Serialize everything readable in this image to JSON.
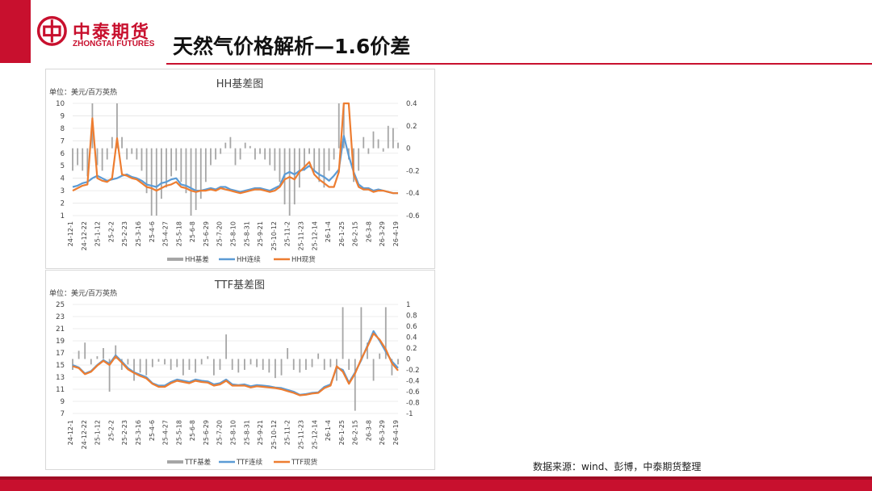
{
  "header": {
    "brand_cn": "中泰期货",
    "brand_en": "ZHONGTAI FUTURES",
    "title": "天然气价格解析—1.6价差"
  },
  "source": "数据来源：wind、彭博，中泰期货整理",
  "colors": {
    "brand": "#c8102e",
    "basis": "#a6a6a6",
    "continuous": "#5b9bd5",
    "spot": "#ed7d31"
  },
  "chart_data": [
    {
      "type": "line",
      "title": "HH基差图",
      "unit_label": "单位：美元/百万英热",
      "ylim": [
        1,
        10
      ],
      "yticks": [
        "1",
        "2",
        "3",
        "4",
        "5",
        "6",
        "7",
        "8",
        "9",
        "10"
      ],
      "y2lim": [
        -0.6,
        0.4
      ],
      "y2ticks": [
        "-0.6",
        "-0.4",
        "-0.2",
        "0",
        "0.2",
        "0.4"
      ],
      "xticks": [
        "24-12-1",
        "24-12-22",
        "25-1-12",
        "25-2-2",
        "25-2-23",
        "25-3-16",
        "25-4-6",
        "25-4-27",
        "25-5-18",
        "25-6-8",
        "25-6-29",
        "25-7-20",
        "25-8-10",
        "25-8-31",
        "25-9-21",
        "25-10-12",
        "25-11-2",
        "25-11-23",
        "25-12-14",
        "26-1-4",
        "26-1-25",
        "26-2-15",
        "26-3-8",
        "26-3-29",
        "26-4-19"
      ],
      "legend": [
        "HH基差",
        "HH连续",
        "HH现货"
      ],
      "series": [
        {
          "name": "HH连续",
          "type": "line",
          "axis": "left",
          "values": [
            3.3,
            3.4,
            3.6,
            3.7,
            4.0,
            4.2,
            4.0,
            3.8,
            3.9,
            4.0,
            4.2,
            4.3,
            4.1,
            4.0,
            3.8,
            3.5,
            3.4,
            3.3,
            3.6,
            3.7,
            3.9,
            4.0,
            3.5,
            3.4,
            3.2,
            3.0,
            3.0,
            3.1,
            3.2,
            3.1,
            3.3,
            3.3,
            3.1,
            3.0,
            2.9,
            3.0,
            3.1,
            3.2,
            3.2,
            3.1,
            3.0,
            3.2,
            3.4,
            4.3,
            4.5,
            4.3,
            4.6,
            4.7,
            5.0,
            4.6,
            4.3,
            4.1,
            3.8,
            4.2,
            4.7,
            7.4,
            5.8,
            4.5,
            3.5,
            3.2,
            3.2,
            3.0,
            3.1,
            3.0,
            2.9,
            2.8,
            2.8
          ]
        },
        {
          "name": "HH现货",
          "type": "line",
          "axis": "left",
          "values": [
            3.0,
            3.2,
            3.4,
            3.5,
            8.8,
            4.0,
            3.8,
            3.7,
            4.0,
            7.2,
            4.3,
            4.2,
            4.0,
            3.9,
            3.6,
            3.3,
            3.2,
            3.0,
            3.2,
            3.4,
            3.5,
            3.7,
            3.3,
            3.2,
            3.0,
            2.9,
            3.0,
            3.0,
            3.1,
            3.0,
            3.2,
            3.1,
            3.0,
            2.9,
            2.8,
            2.9,
            3.0,
            3.1,
            3.1,
            3.0,
            2.9,
            3.0,
            3.3,
            3.9,
            4.1,
            3.9,
            4.5,
            4.9,
            5.3,
            4.3,
            3.9,
            3.6,
            3.3,
            3.3,
            4.5,
            10.0,
            10.0,
            4.3,
            3.3,
            3.1,
            3.1,
            2.9,
            3.0,
            3.0,
            2.9,
            2.8,
            2.8
          ]
        },
        {
          "name": "HH基差",
          "type": "bar",
          "axis": "right",
          "values": [
            -0.2,
            -0.15,
            -0.2,
            -0.25,
            0.5,
            -0.15,
            -0.2,
            -0.1,
            0.1,
            0.5,
            0.1,
            -0.1,
            -0.05,
            -0.1,
            -0.2,
            -0.4,
            -0.6,
            -0.6,
            -0.45,
            -0.35,
            -0.25,
            -0.2,
            -0.3,
            -0.4,
            -0.6,
            -0.55,
            -0.45,
            -0.3,
            -0.15,
            -0.1,
            -0.05,
            0.05,
            0.1,
            -0.15,
            -0.1,
            0.05,
            0.02,
            -0.1,
            -0.05,
            -0.1,
            -0.15,
            -0.2,
            -0.3,
            -0.5,
            -0.6,
            -0.5,
            -0.35,
            -0.2,
            -0.05,
            -0.2,
            -0.3,
            -0.35,
            -0.2,
            -0.1,
            0.45,
            0.5,
            -0.1,
            -0.3,
            -0.2,
            0.1,
            -0.05,
            0.15,
            0.08,
            -0.03,
            0.2,
            0.18,
            0.05
          ]
        }
      ]
    },
    {
      "type": "line",
      "title": "TTF基差图",
      "unit_label": "单位：美元/百万英热",
      "ylim": [
        7,
        25
      ],
      "yticks": [
        "7",
        "9",
        "11",
        "13",
        "15",
        "17",
        "19",
        "21",
        "23",
        "25"
      ],
      "y2lim": [
        -1,
        1
      ],
      "y2ticks": [
        "-1",
        "-0.8",
        "-0.6",
        "-0.4",
        "-0.2",
        "0",
        "0.2",
        "0.4",
        "0.6",
        "0.8",
        "1"
      ],
      "xticks": [
        "24-12-1",
        "24-12-22",
        "25-1-12",
        "25-2-2",
        "25-2-23",
        "25-3-16",
        "25-4-6",
        "25-4-27",
        "25-5-18",
        "25-6-8",
        "25-6-29",
        "25-7-20",
        "25-8-10",
        "25-8-31",
        "25-9-21",
        "25-10-12",
        "25-11-2",
        "25-11-23",
        "25-12-14",
        "26-1-4",
        "26-1-25",
        "26-2-15",
        "26-3-8",
        "26-3-29",
        "26-4-19"
      ],
      "legend": [
        "TTF基差",
        "TTF连续",
        "TTF现货"
      ],
      "series": [
        {
          "name": "TTF连续",
          "type": "line",
          "axis": "left",
          "values": [
            15.0,
            14.6,
            13.6,
            14.0,
            15.0,
            15.8,
            15.2,
            16.6,
            15.6,
            14.5,
            13.8,
            13.4,
            13.0,
            12.0,
            11.6,
            11.6,
            12.2,
            12.6,
            12.4,
            12.2,
            12.6,
            12.4,
            12.3,
            11.8,
            12.0,
            12.6,
            11.8,
            11.7,
            11.8,
            11.5,
            11.7,
            11.6,
            11.5,
            11.3,
            11.2,
            10.9,
            10.6,
            10.1,
            10.2,
            10.4,
            10.5,
            11.4,
            11.8,
            14.6,
            14.2,
            12.1,
            13.8,
            15.8,
            18.2,
            20.6,
            19.0,
            17.2,
            15.6,
            14.5
          ]
        },
        {
          "name": "TTF现货",
          "type": "line",
          "axis": "left",
          "values": [
            14.8,
            14.5,
            13.5,
            13.9,
            14.9,
            15.7,
            15.0,
            16.4,
            15.4,
            14.3,
            13.7,
            13.2,
            12.8,
            11.9,
            11.4,
            11.4,
            12.0,
            12.4,
            12.2,
            12.0,
            12.4,
            12.2,
            12.1,
            11.6,
            11.8,
            12.4,
            11.6,
            11.6,
            11.6,
            11.3,
            11.5,
            11.4,
            11.3,
            11.2,
            11.0,
            10.7,
            10.4,
            10.0,
            10.1,
            10.3,
            10.4,
            11.2,
            11.6,
            14.8,
            13.9,
            11.9,
            13.6,
            16.0,
            18.0,
            20.2,
            19.2,
            17.6,
            15.3,
            14.1
          ]
        },
        {
          "name": "TTF基差",
          "type": "bar",
          "axis": "right",
          "values": [
            -0.2,
            0.15,
            0.3,
            -0.1,
            0.05,
            0.2,
            -0.6,
            0.25,
            -0.2,
            -0.1,
            -0.4,
            -0.25,
            -0.3,
            -0.15,
            -0.05,
            -0.1,
            -0.2,
            -0.15,
            -0.3,
            -0.2,
            -0.25,
            -0.1,
            0.05,
            -0.3,
            -0.2,
            0.45,
            -0.2,
            -0.25,
            -0.2,
            -0.1,
            -0.15,
            -0.2,
            -0.25,
            -0.35,
            -0.3,
            0.2,
            -0.2,
            -0.25,
            -0.2,
            -0.15,
            0.1,
            -0.2,
            -0.15,
            -0.4,
            0.95,
            -0.2,
            -0.95,
            0.95,
            0.3,
            -0.4,
            0.1,
            0.95,
            -0.3,
            -0.1
          ]
        }
      ]
    }
  ]
}
